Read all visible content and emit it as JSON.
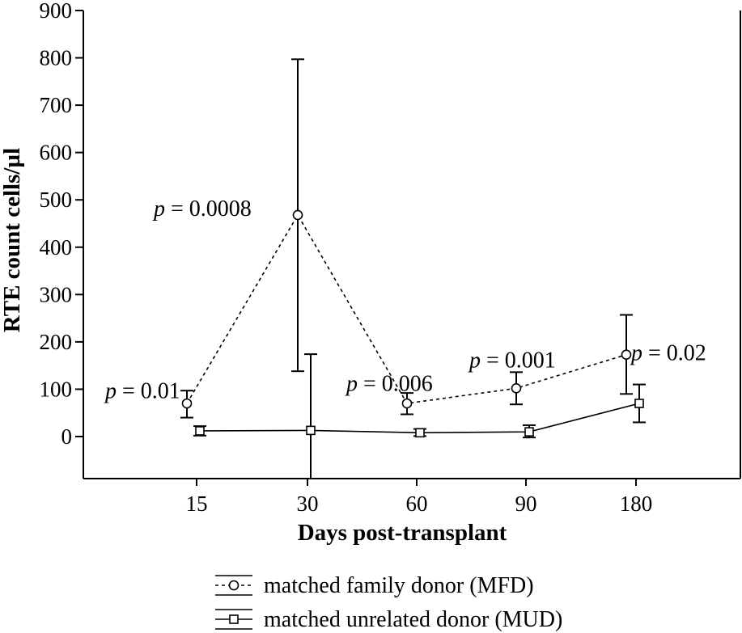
{
  "chart_data": {
    "type": "line",
    "title": "",
    "xlabel": "Days post-transplant",
    "ylabel": "RTE count cells/µl",
    "categories": [
      "15",
      "30",
      "60",
      "90",
      "180"
    ],
    "ylim": [
      -90,
      900
    ],
    "yticks": [
      0,
      100,
      200,
      300,
      400,
      500,
      600,
      700,
      800,
      900
    ],
    "grid": false,
    "legend_position": "bottom",
    "series": [
      {
        "name": "matched family donor (MFD)",
        "marker": "circle",
        "line_style": "dotted",
        "values": [
          70,
          468,
          70,
          102,
          173
        ],
        "error_low": [
          40,
          138,
          47,
          68,
          90
        ],
        "error_high": [
          97,
          797,
          92,
          136,
          257
        ]
      },
      {
        "name": "matched unrelated donor (MUD)",
        "marker": "square",
        "line_style": "solid",
        "values": [
          12,
          13,
          8,
          10,
          70
        ],
        "error_low": [
          2,
          -90,
          1,
          -2,
          30
        ],
        "error_high": [
          22,
          174,
          16,
          24,
          110
        ]
      }
    ],
    "annotations": [
      {
        "category": "15",
        "p_symbol": "p",
        "text": " = 0.01",
        "y": 95
      },
      {
        "category": "30",
        "p_symbol": "p",
        "text": " = 0.0008",
        "y": 480
      },
      {
        "category": "60",
        "p_symbol": "p",
        "text": " = 0.006",
        "y": 110
      },
      {
        "category": "90",
        "p_symbol": "p",
        "text": " = 0.001",
        "y": 160
      },
      {
        "category": "180",
        "p_symbol": "p",
        "text": " = 0.02",
        "y": 175
      }
    ]
  }
}
